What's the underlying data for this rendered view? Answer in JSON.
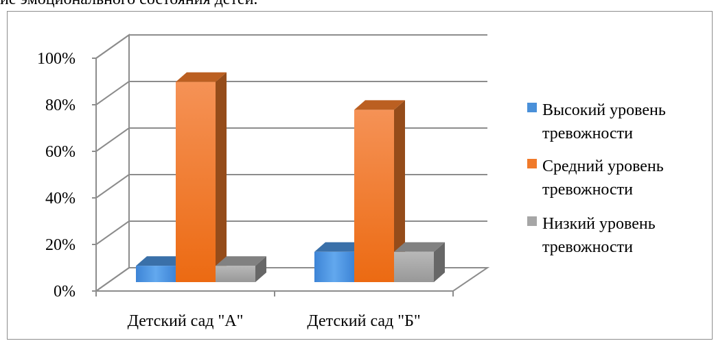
{
  "caption_fragment": "ие эмоционального состояния детей.",
  "chart_data": {
    "type": "bar",
    "categories": [
      "Детский сад \"А\"",
      "Детский сад \"Б\""
    ],
    "series": [
      {
        "name": "Высокий уровень тревожности",
        "values": [
          7,
          13
        ],
        "color": "#4a90d9"
      },
      {
        "name": "Средний уровень тревожности",
        "values": [
          86,
          74
        ],
        "color": "#f07a2a"
      },
      {
        "name": "Низкий уровень тревожности",
        "values": [
          7,
          13
        ],
        "color": "#a6a6a6"
      }
    ],
    "y_ticks": [
      "0%",
      "20%",
      "40%",
      "60%",
      "80%",
      "100%"
    ],
    "ylim": [
      0,
      100
    ],
    "grid": true,
    "legend_position": "right",
    "style": "3d-clustered-column"
  }
}
